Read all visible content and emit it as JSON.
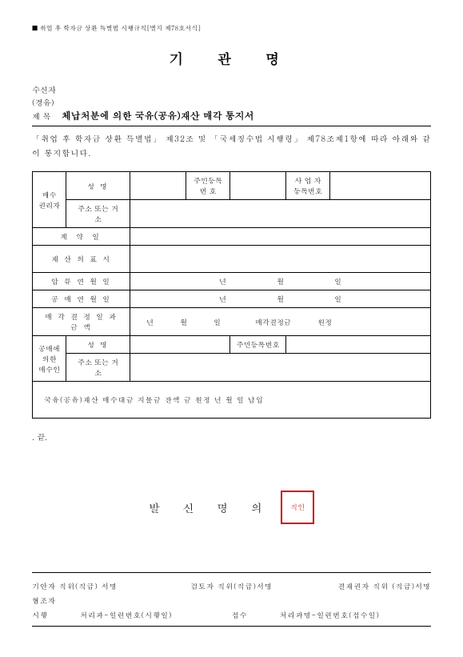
{
  "header_note": "■ 취업 후 학자금 상환 특별법 시행규칙[별지 제78호서식]",
  "title": "기 관 명",
  "recipient_label": "수신자",
  "via_label": "(경유)",
  "subject_label": "제  목",
  "subject_text": "체납처분에 의한 국유(공유)재산 매각 통지서",
  "body_text": "「취업 후 학자금 상환 특별법」 제32조 및 「국세징수법 시행령」 제78조제1항에 따라 아래와 같이 통지합니다.",
  "table": {
    "buyer_mgr": "매수\n권리자",
    "name": "성        명",
    "rrn": "주민등록\n번    호",
    "biz": "사 업 자\n등록번호",
    "addr": "주소 또는 거\n소",
    "contract_date": "계    약    일",
    "property": "재 산 의  표 시",
    "seizure_date": "압   류   연   월   일",
    "auction_date": "공   매   연   월   일",
    "sale_date_amt": "매 각  결 정 일 과\n금  액",
    "year": "년",
    "month": "월",
    "day": "일",
    "sale_amt": "매각결정금",
    "won_jeong": "원정",
    "auction_buyer": "공매에\n의한\n매수인",
    "rrn2": "주민등록번호",
    "balance_text": "국유(공유)재산 매수대금 지불금 잔액 금             원정           년         월         일  납입"
  },
  "end_mark": ".    끝.",
  "sender_label": "발 신 명 의",
  "stamp_text": "직인",
  "footer": {
    "drafter": "기안자  직위(직급) 서명",
    "reviewer": "검토자  직위(직급)서명",
    "approver": "결재권자  직위 (직급)서명",
    "coop": "협조자",
    "exec": "시행",
    "exec_val": "처리과-일련번호(시행일)",
    "receive": "접수",
    "receive_val": "처리과명-일련번호(접수일)"
  }
}
